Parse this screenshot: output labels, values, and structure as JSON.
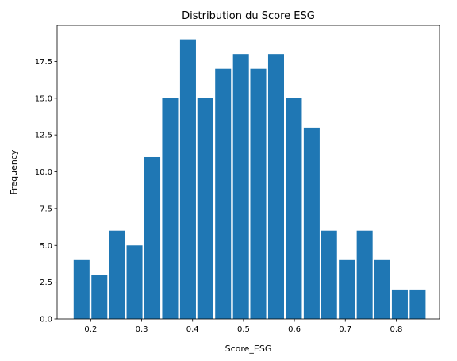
{
  "chart_data": {
    "type": "bar",
    "title": "Distribution du Score ESG",
    "xlabel": "Score_ESG",
    "ylabel": "Frequency",
    "bar_color": "#1f77b4",
    "grid": false,
    "xlim": [
      0.134,
      0.885
    ],
    "ylim": [
      0,
      19.95
    ],
    "bin_width": 0.0347,
    "bins": [
      {
        "x": 0.182,
        "value": 4
      },
      {
        "x": 0.217,
        "value": 3
      },
      {
        "x": 0.252,
        "value": 6
      },
      {
        "x": 0.286,
        "value": 5
      },
      {
        "x": 0.321,
        "value": 11
      },
      {
        "x": 0.356,
        "value": 15
      },
      {
        "x": 0.391,
        "value": 19
      },
      {
        "x": 0.425,
        "value": 15
      },
      {
        "x": 0.46,
        "value": 17
      },
      {
        "x": 0.495,
        "value": 18
      },
      {
        "x": 0.529,
        "value": 17
      },
      {
        "x": 0.564,
        "value": 18
      },
      {
        "x": 0.599,
        "value": 15
      },
      {
        "x": 0.634,
        "value": 13
      },
      {
        "x": 0.668,
        "value": 6
      },
      {
        "x": 0.703,
        "value": 4
      },
      {
        "x": 0.738,
        "value": 6
      },
      {
        "x": 0.772,
        "value": 4
      },
      {
        "x": 0.807,
        "value": 2
      },
      {
        "x": 0.842,
        "value": 2
      }
    ],
    "x_ticks": [
      {
        "value": 0.2,
        "label": "0.2"
      },
      {
        "value": 0.3,
        "label": "0.3"
      },
      {
        "value": 0.4,
        "label": "0.4"
      },
      {
        "value": 0.5,
        "label": "0.5"
      },
      {
        "value": 0.6,
        "label": "0.6"
      },
      {
        "value": 0.7,
        "label": "0.7"
      },
      {
        "value": 0.8,
        "label": "0.8"
      }
    ],
    "y_ticks": [
      {
        "value": 0,
        "label": "0.0"
      },
      {
        "value": 2.5,
        "label": "2.5"
      },
      {
        "value": 5,
        "label": "5.0"
      },
      {
        "value": 7.5,
        "label": "7.5"
      },
      {
        "value": 10,
        "label": "10.0"
      },
      {
        "value": 12.5,
        "label": "12.5"
      },
      {
        "value": 15,
        "label": "15.0"
      },
      {
        "value": 17.5,
        "label": "17.5"
      }
    ]
  }
}
